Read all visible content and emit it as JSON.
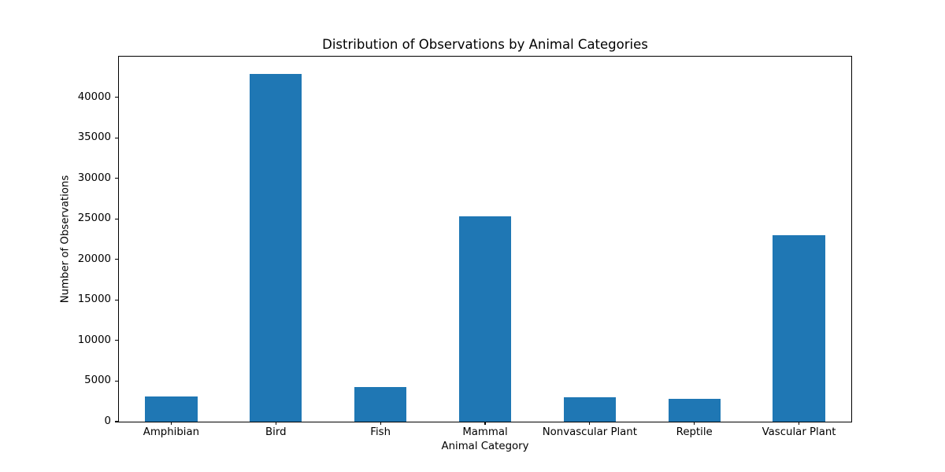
{
  "chart_data": {
    "type": "bar",
    "title": "Distribution of Observations by Animal Categories",
    "xlabel": "Animal Category",
    "ylabel": "Number of Observations",
    "categories": [
      "Amphibian",
      "Bird",
      "Fish",
      "Mammal",
      "Nonvascular Plant",
      "Reptile",
      "Vascular Plant"
    ],
    "values": [
      3100,
      42900,
      4250,
      25300,
      3000,
      2850,
      23000
    ],
    "ylim": [
      0,
      45000
    ],
    "yticks": [
      0,
      5000,
      10000,
      15000,
      20000,
      25000,
      30000,
      35000,
      40000
    ],
    "bar_color": "#1f77b4",
    "axis_color": "#000000",
    "background_color": "#ffffff",
    "grid": false,
    "legend": "none",
    "bar_width_fraction": 0.5
  }
}
